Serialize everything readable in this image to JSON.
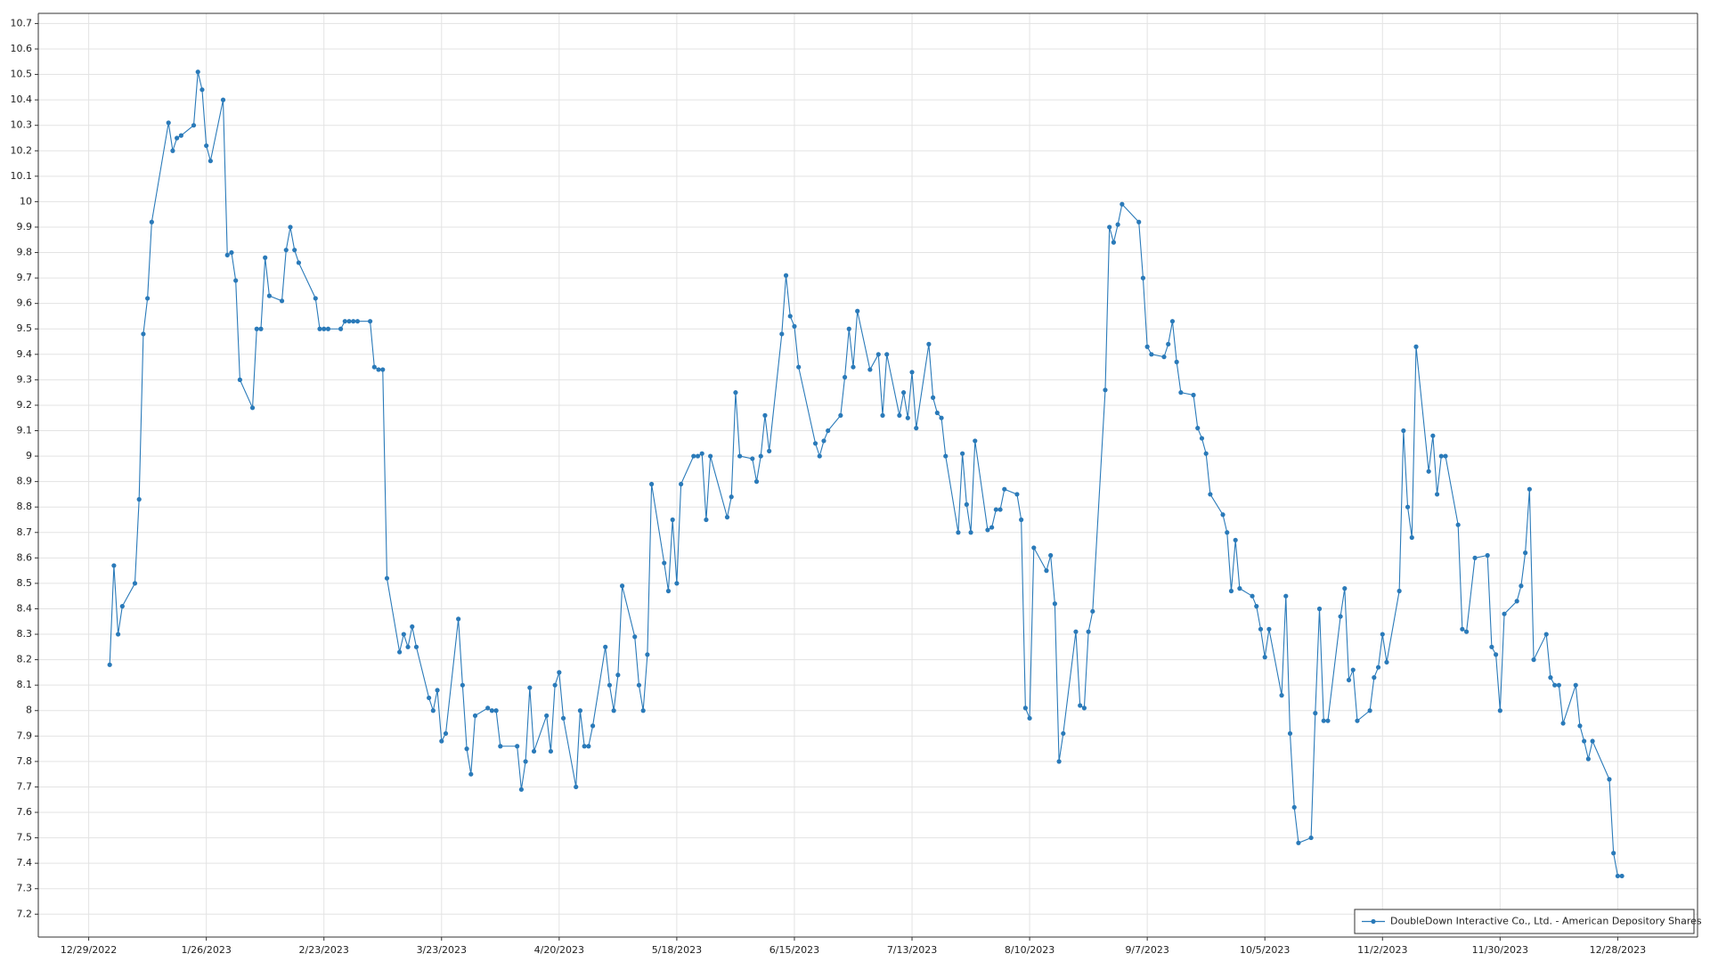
{
  "chart_data": {
    "type": "line",
    "x": [
      "1/3/2023",
      "1/4/2023",
      "1/5/2023",
      "1/6/2023",
      "1/9/2023",
      "1/10/2023",
      "1/11/2023",
      "1/12/2023",
      "1/13/2023",
      "1/17/2023",
      "1/18/2023",
      "1/19/2023",
      "1/20/2023",
      "1/23/2023",
      "1/24/2023",
      "1/25/2023",
      "1/26/2023",
      "1/27/2023",
      "1/30/2023",
      "1/31/2023",
      "2/1/2023",
      "2/2/2023",
      "2/3/2023",
      "2/6/2023",
      "2/7/2023",
      "2/8/2023",
      "2/9/2023",
      "2/10/2023",
      "2/13/2023",
      "2/14/2023",
      "2/15/2023",
      "2/16/2023",
      "2/17/2023",
      "2/21/2023",
      "2/22/2023",
      "2/23/2023",
      "2/24/2023",
      "2/27/2023",
      "2/28/2023",
      "3/1/2023",
      "3/2/2023",
      "3/3/2023",
      "3/6/2023",
      "3/7/2023",
      "3/8/2023",
      "3/9/2023",
      "3/10/2023",
      "3/13/2023",
      "3/14/2023",
      "3/15/2023",
      "3/16/2023",
      "3/17/2023",
      "3/20/2023",
      "3/21/2023",
      "3/22/2023",
      "3/23/2023",
      "3/24/2023",
      "3/27/2023",
      "3/28/2023",
      "3/29/2023",
      "3/30/2023",
      "3/31/2023",
      "4/3/2023",
      "4/4/2023",
      "4/5/2023",
      "4/6/2023",
      "4/10/2023",
      "4/11/2023",
      "4/12/2023",
      "4/13/2023",
      "4/14/2023",
      "4/17/2023",
      "4/18/2023",
      "4/19/2023",
      "4/20/2023",
      "4/21/2023",
      "4/24/2023",
      "4/25/2023",
      "4/26/2023",
      "4/27/2023",
      "4/28/2023",
      "5/1/2023",
      "5/2/2023",
      "5/3/2023",
      "5/4/2023",
      "5/5/2023",
      "5/8/2023",
      "5/9/2023",
      "5/10/2023",
      "5/11/2023",
      "5/12/2023",
      "5/15/2023",
      "5/16/2023",
      "5/17/2023",
      "5/18/2023",
      "5/19/2023",
      "5/22/2023",
      "5/23/2023",
      "5/24/2023",
      "5/25/2023",
      "5/26/2023",
      "5/30/2023",
      "5/31/2023",
      "6/1/2023",
      "6/2/2023",
      "6/5/2023",
      "6/6/2023",
      "6/7/2023",
      "6/8/2023",
      "6/9/2023",
      "6/12/2023",
      "6/13/2023",
      "6/14/2023",
      "6/15/2023",
      "6/16/2023",
      "6/20/2023",
      "6/21/2023",
      "6/22/2023",
      "6/23/2023",
      "6/26/2023",
      "6/27/2023",
      "6/28/2023",
      "6/29/2023",
      "6/30/2023",
      "7/3/2023",
      "7/5/2023",
      "7/6/2023",
      "7/7/2023",
      "7/10/2023",
      "7/11/2023",
      "7/12/2023",
      "7/13/2023",
      "7/14/2023",
      "7/17/2023",
      "7/18/2023",
      "7/19/2023",
      "7/20/2023",
      "7/21/2023",
      "7/24/2023",
      "7/25/2023",
      "7/26/2023",
      "7/27/2023",
      "7/28/2023",
      "7/31/2023",
      "8/1/2023",
      "8/2/2023",
      "8/3/2023",
      "8/4/2023",
      "8/7/2023",
      "8/8/2023",
      "8/9/2023",
      "8/10/2023",
      "8/11/2023",
      "8/14/2023",
      "8/15/2023",
      "8/16/2023",
      "8/17/2023",
      "8/18/2023",
      "8/21/2023",
      "8/22/2023",
      "8/23/2023",
      "8/24/2023",
      "8/25/2023",
      "8/28/2023",
      "8/29/2023",
      "8/30/2023",
      "8/31/2023",
      "9/1/2023",
      "9/5/2023",
      "9/6/2023",
      "9/7/2023",
      "9/8/2023",
      "9/11/2023",
      "9/12/2023",
      "9/13/2023",
      "9/14/2023",
      "9/15/2023",
      "9/18/2023",
      "9/19/2023",
      "9/20/2023",
      "9/21/2023",
      "9/22/2023",
      "9/25/2023",
      "9/26/2023",
      "9/27/2023",
      "9/28/2023",
      "9/29/2023",
      "10/2/2023",
      "10/3/2023",
      "10/4/2023",
      "10/5/2023",
      "10/6/2023",
      "10/9/2023",
      "10/10/2023",
      "10/11/2023",
      "10/12/2023",
      "10/13/2023",
      "10/16/2023",
      "10/17/2023",
      "10/18/2023",
      "10/19/2023",
      "10/20/2023",
      "10/23/2023",
      "10/24/2023",
      "10/25/2023",
      "10/26/2023",
      "10/27/2023",
      "10/30/2023",
      "10/31/2023",
      "11/1/2023",
      "11/2/2023",
      "11/3/2023",
      "11/6/2023",
      "11/7/2023",
      "11/8/2023",
      "11/9/2023",
      "11/10/2023",
      "11/13/2023",
      "11/14/2023",
      "11/15/2023",
      "11/16/2023",
      "11/17/2023",
      "11/20/2023",
      "11/21/2023",
      "11/22/2023",
      "11/24/2023",
      "11/27/2023",
      "11/28/2023",
      "11/29/2023",
      "11/30/2023",
      "12/1/2023",
      "12/4/2023",
      "12/5/2023",
      "12/6/2023",
      "12/7/2023",
      "12/8/2023",
      "12/11/2023",
      "12/12/2023",
      "12/13/2023",
      "12/14/2023",
      "12/15/2023",
      "12/18/2023",
      "12/19/2023",
      "12/20/2023",
      "12/21/2023",
      "12/22/2023",
      "12/26/2023",
      "12/27/2023",
      "12/28/2023",
      "12/29/2023"
    ],
    "series": [
      {
        "name": "DoubleDown Interactive Co., Ltd. - American Depository Shares",
        "color": "#2a7ab9",
        "values": [
          8.18,
          8.57,
          8.3,
          8.41,
          8.5,
          8.83,
          9.48,
          9.62,
          9.92,
          10.31,
          10.2,
          10.25,
          10.26,
          10.3,
          10.51,
          10.44,
          10.22,
          10.16,
          10.4,
          9.79,
          9.8,
          9.69,
          9.3,
          9.19,
          9.5,
          9.5,
          9.78,
          9.63,
          9.61,
          9.81,
          9.9,
          9.81,
          9.76,
          9.62,
          9.5,
          9.5,
          9.5,
          9.5,
          9.53,
          9.53,
          9.53,
          9.53,
          9.53,
          9.35,
          9.34,
          9.34,
          8.52,
          8.23,
          8.3,
          8.25,
          8.33,
          8.25,
          8.05,
          8.0,
          8.08,
          7.88,
          7.91,
          8.36,
          8.1,
          7.85,
          7.75,
          7.98,
          8.01,
          8.0,
          8.0,
          7.86,
          7.86,
          7.69,
          7.8,
          8.09,
          7.84,
          7.98,
          7.84,
          8.1,
          8.15,
          7.97,
          7.7,
          8.0,
          7.86,
          7.86,
          7.94,
          8.25,
          8.1,
          8.0,
          8.14,
          8.49,
          8.29,
          8.1,
          8.0,
          8.22,
          8.89,
          8.58,
          8.47,
          8.75,
          8.5,
          8.89,
          9.0,
          9.0,
          9.01,
          8.75,
          9.0,
          8.76,
          8.84,
          9.25,
          9.0,
          8.99,
          8.9,
          9.0,
          9.16,
          9.02,
          9.48,
          9.71,
          9.55,
          9.51,
          9.35,
          9.05,
          9.0,
          9.06,
          9.1,
          9.16,
          9.31,
          9.5,
          9.35,
          9.57,
          9.34,
          9.4,
          9.16,
          9.4,
          9.16,
          9.25,
          9.15,
          9.33,
          9.11,
          9.44,
          9.23,
          9.17,
          9.15,
          9.0,
          8.7,
          9.01,
          8.81,
          8.7,
          9.06,
          8.71,
          8.72,
          8.79,
          8.79,
          8.87,
          8.85,
          8.75,
          8.01,
          7.97,
          8.64,
          8.55,
          8.61,
          8.42,
          7.8,
          7.91,
          8.31,
          8.02,
          8.01,
          8.31,
          8.39,
          9.26,
          9.9,
          9.84,
          9.91,
          9.99,
          9.92,
          9.7,
          9.43,
          9.4,
          9.39,
          9.44,
          9.53,
          9.37,
          9.25,
          9.24,
          9.11,
          9.07,
          9.01,
          8.85,
          8.77,
          8.7,
          8.47,
          8.67,
          8.48,
          8.45,
          8.41,
          8.32,
          8.21,
          8.32,
          8.06,
          8.45,
          7.91,
          7.62,
          7.48,
          7.5,
          7.99,
          8.4,
          7.96,
          7.96,
          8.37,
          8.48,
          8.12,
          8.16,
          7.96,
          8.0,
          8.13,
          8.17,
          8.3,
          8.19,
          8.47,
          9.1,
          8.8,
          8.68,
          9.43,
          8.94,
          9.08,
          8.85,
          9.0,
          9.0,
          8.73,
          8.32,
          8.31,
          8.6,
          8.61,
          8.25,
          8.22,
          8.0,
          8.38,
          8.43,
          8.49,
          8.62,
          8.87,
          8.2,
          8.3,
          8.13,
          8.1,
          8.1,
          7.95,
          8.1,
          7.94,
          7.88,
          7.81,
          7.88,
          7.73,
          7.44,
          7.35,
          7.35
        ]
      }
    ],
    "xlim": [
      "12/17/2022",
      "1/16/2024"
    ],
    "xticks": [
      "12/29/2022",
      "1/26/2023",
      "2/23/2023",
      "3/23/2023",
      "4/20/2023",
      "5/18/2023",
      "6/15/2023",
      "7/13/2023",
      "8/10/2023",
      "9/7/2023",
      "10/5/2023",
      "11/2/2023",
      "11/30/2023",
      "12/28/2023"
    ],
    "ylim": [
      7.11,
      10.74
    ],
    "yticks": [
      7.2,
      7.3,
      7.4,
      7.5,
      7.6,
      7.7,
      7.8,
      7.9,
      8,
      8.1,
      8.2,
      8.3,
      8.4,
      8.5,
      8.6,
      8.7,
      8.8,
      8.9,
      9,
      9.1,
      9.2,
      9.3,
      9.4,
      9.5,
      9.6,
      9.7,
      9.8,
      9.9,
      10,
      10.1,
      10.2,
      10.3,
      10.4,
      10.5,
      10.6,
      10.7
    ],
    "grid": true,
    "legend": "lower right"
  }
}
